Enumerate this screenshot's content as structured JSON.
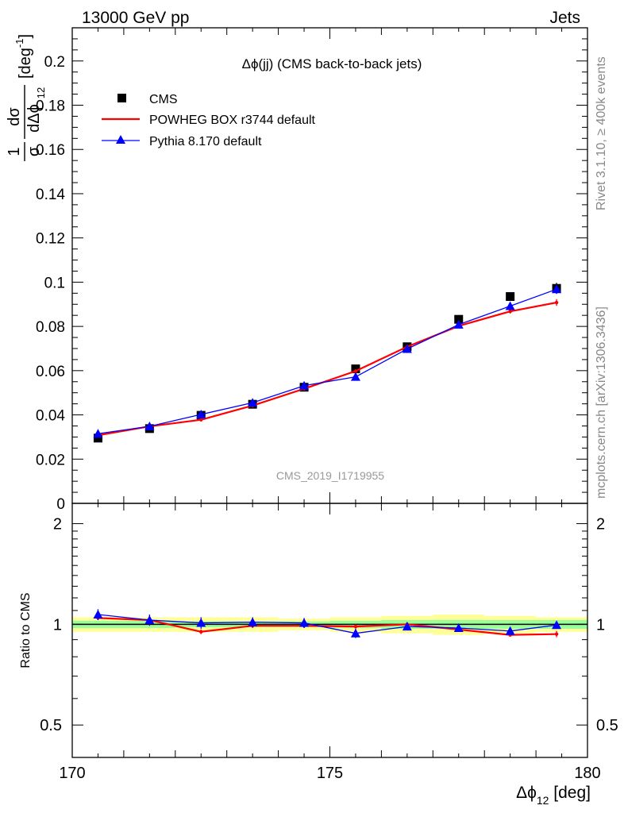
{
  "header": {
    "left": "13000 GeV pp",
    "right": "Jets"
  },
  "side_text": {
    "rivet": "Rivet 3.1.10, ≥ 400k events",
    "mcplots": "mcplots.cern.ch [arXiv:1306.3436]"
  },
  "chart_data": [
    {
      "type": "scatter",
      "panel": "main",
      "title": "Δϕ(jj) (CMS back-to-back jets)",
      "watermark": "CMS_2019_I1719955",
      "ylabel": {
        "num": "1",
        "den": "σ",
        "dnum": "dσ",
        "dden": "dΔϕ",
        "dden_sub": "12",
        "unit": "[deg",
        "unit_sup": "-1",
        "unit_end": "]"
      },
      "ylim": [
        0,
        0.215
      ],
      "yticks": [
        0,
        0.02,
        0.04,
        0.06,
        0.08,
        0.1,
        0.12,
        0.14,
        0.16,
        0.18,
        0.2
      ],
      "ytick_labels": [
        "0",
        "0.02",
        "0.04",
        "0.06",
        "0.08",
        "0.1",
        "0.12",
        "0.14",
        "0.16",
        "0.18",
        "0.2"
      ],
      "xlim": [
        170,
        180
      ],
      "legend_position": "top-left",
      "series": [
        {
          "name": "CMS",
          "color": "#000000",
          "marker": "square",
          "x": [
            170.5,
            171.5,
            172.5,
            173.5,
            174.5,
            175.5,
            176.5,
            177.5,
            178.5,
            179.4
          ],
          "y": [
            0.0295,
            0.0338,
            0.0398,
            0.0448,
            0.0525,
            0.0608,
            0.0708,
            0.0832,
            0.0935,
            0.0972
          ],
          "err": [
            0.0015,
            0.0015,
            0.0015,
            0.0015,
            0.0015,
            0.0015,
            0.0015,
            0.0015,
            0.0015,
            0.0025
          ]
        },
        {
          "name": "POWHEG BOX r3744 default",
          "color": "#ff0000",
          "marker": "dot",
          "x": [
            170.5,
            171.5,
            172.5,
            173.5,
            174.5,
            175.5,
            176.5,
            177.5,
            178.5,
            179.4
          ],
          "y": [
            0.0308,
            0.0348,
            0.0378,
            0.0442,
            0.0518,
            0.0598,
            0.0708,
            0.0802,
            0.0868,
            0.0908
          ],
          "err": [
            0.0008,
            0.0008,
            0.0008,
            0.0008,
            0.0008,
            0.0008,
            0.001,
            0.001,
            0.001,
            0.0015
          ]
        },
        {
          "name": "Pythia 8.170 default",
          "color": "#0000ff",
          "marker": "triangle",
          "x": [
            170.5,
            171.5,
            172.5,
            173.5,
            174.5,
            175.5,
            176.5,
            177.5,
            178.5,
            179.4
          ],
          "y": [
            0.0315,
            0.0348,
            0.0402,
            0.0455,
            0.0532,
            0.0572,
            0.0698,
            0.0808,
            0.0892,
            0.0968
          ],
          "err": [
            0.0015,
            0.0015,
            0.0015,
            0.0015,
            0.0015,
            0.0015,
            0.0015,
            0.0015,
            0.0015,
            0.002
          ]
        }
      ]
    },
    {
      "type": "line",
      "panel": "ratio",
      "ylabel": "Ratio to CMS",
      "xlabel": "Δϕ",
      "xlabel_sub": "12",
      "xlabel_unit": "[deg]",
      "xlim": [
        170,
        180
      ],
      "xticks": [
        170,
        175,
        180
      ],
      "xtick_labels": [
        "170",
        "175",
        "180"
      ],
      "ylim": [
        0.4,
        2.3
      ],
      "yscale": "log",
      "yticks": [
        0.5,
        1,
        2
      ],
      "ytick_labels": [
        "0.5",
        "1",
        "2"
      ],
      "reference": 1,
      "bands": [
        {
          "name": "yellow",
          "color": "#ffff99",
          "half_width": [
            0.05,
            0.05,
            0.05,
            0.05,
            0.04,
            0.05,
            0.06,
            0.07,
            0.06,
            0.05
          ]
        },
        {
          "name": "green",
          "color": "#99ff99",
          "half_width": [
            0.025,
            0.025,
            0.02,
            0.02,
            0.02,
            0.025,
            0.03,
            0.03,
            0.03,
            0.03
          ]
        }
      ],
      "series": [
        {
          "name": "POWHEG BOX r3744 default",
          "color": "#ff0000",
          "marker": "dot",
          "x": [
            170.5,
            171.5,
            172.5,
            173.5,
            174.5,
            175.5,
            176.5,
            177.5,
            178.5,
            179.4
          ],
          "y": [
            1.045,
            1.03,
            0.95,
            0.99,
            0.99,
            0.985,
            1.0,
            0.965,
            0.93,
            0.935
          ],
          "err": [
            0.015,
            0.015,
            0.015,
            0.015,
            0.015,
            0.015,
            0.015,
            0.015,
            0.012,
            0.02
          ]
        },
        {
          "name": "Pythia 8.170 default",
          "color": "#0000ff",
          "marker": "triangle",
          "x": [
            170.5,
            171.5,
            172.5,
            173.5,
            174.5,
            175.5,
            176.5,
            177.5,
            178.5,
            179.4
          ],
          "y": [
            1.07,
            1.03,
            1.01,
            1.015,
            1.01,
            0.94,
            0.985,
            0.975,
            0.955,
            0.995
          ],
          "err": [
            0.04,
            0.04,
            0.04,
            0.035,
            0.035,
            0.03,
            0.025,
            0.025,
            0.025,
            0.025
          ]
        }
      ]
    }
  ]
}
